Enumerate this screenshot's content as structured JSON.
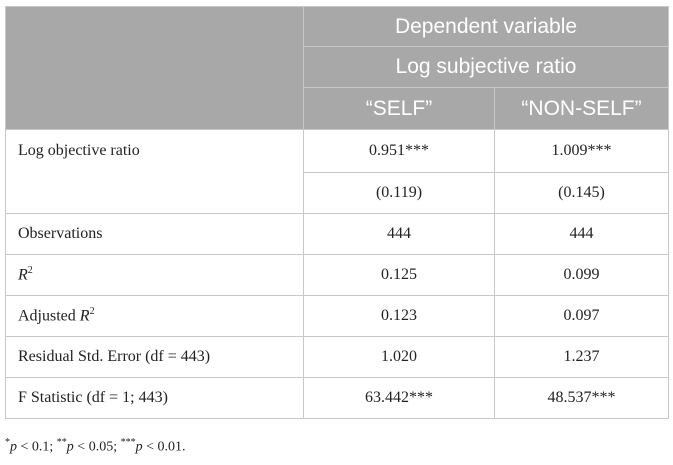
{
  "header": {
    "dependent_variable": "Dependent variable",
    "log_subjective_ratio": "Log subjective ratio",
    "col_self": "“SELF”",
    "col_nonself": "“NON-SELF”"
  },
  "rows": {
    "log_objective_ratio": {
      "label": "Log objective ratio",
      "self": "0.951***",
      "nonself": "1.009***"
    },
    "std_errors": {
      "self": "(0.119)",
      "nonself": "(0.145)"
    },
    "observations": {
      "label": "Observations",
      "self": "444",
      "nonself": "444"
    },
    "r2": {
      "label_var": "R",
      "label_sup": "2",
      "self": "0.125",
      "nonself": "0.099"
    },
    "adj_r2": {
      "label_prefix": "Adjusted ",
      "label_var": "R",
      "label_sup": "2",
      "self": "0.123",
      "nonself": "0.097"
    },
    "residual_se": {
      "label": "Residual Std. Error (df = 443)",
      "self": "1.020",
      "nonself": "1.237"
    },
    "f_stat": {
      "label": "F Statistic (df = 1; 443)",
      "self": "63.442***",
      "nonself": "48.537***"
    }
  },
  "footnote": {
    "s1": "*",
    "p1": "p",
    "t1": " < 0.1; ",
    "s2": "**",
    "p2": "p",
    "t2": " < 0.05; ",
    "s3": "***",
    "p3": "p",
    "t3": " < 0.01."
  }
}
